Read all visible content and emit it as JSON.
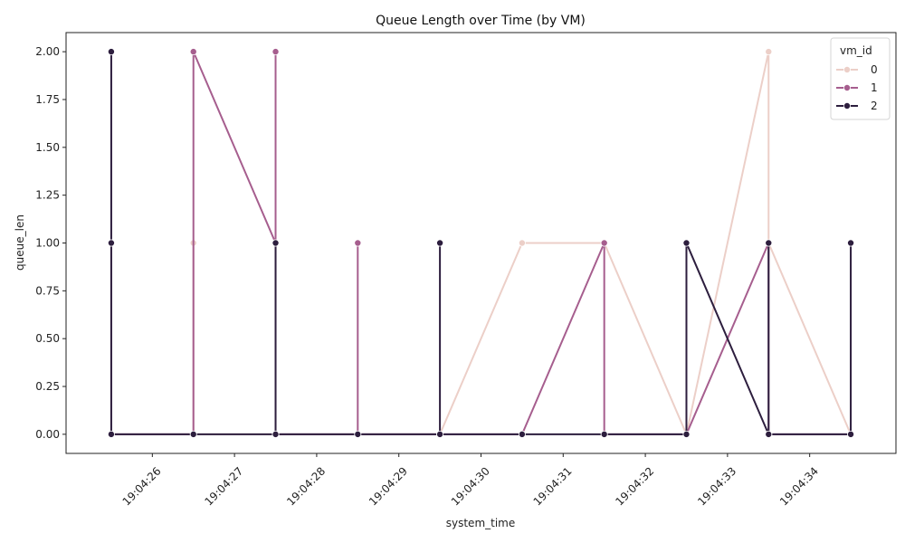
{
  "chart_data": {
    "type": "line",
    "title": "Queue Length over Time (by VM)",
    "xlabel": "system_time",
    "ylabel": "queue_len",
    "x_ticks": [
      "19:04:26",
      "19:04:27",
      "19:04:28",
      "19:04:29",
      "19:04:30",
      "19:04:31",
      "19:04:32",
      "19:04:33",
      "19:04:34"
    ],
    "xlim": [
      "19:04:24.950",
      "19:04:35.050"
    ],
    "ylim": [
      -0.1,
      2.1
    ],
    "y_ticks": [
      0.0,
      0.25,
      0.5,
      0.75,
      1.0,
      1.25,
      1.5,
      1.75,
      2.0
    ],
    "y_tick_labels": [
      "0.00",
      "0.25",
      "0.50",
      "0.75",
      "1.00",
      "1.25",
      "1.50",
      "1.75",
      "2.00"
    ],
    "grid": false,
    "legend": {
      "title": "vm_id",
      "position": "top-right"
    },
    "series": [
      {
        "name": "0",
        "color": "#eccfc8",
        "points": [
          {
            "x": "19:04:25.5",
            "y": 0
          },
          {
            "x": "19:04:25.5",
            "y": 1
          },
          {
            "x": "19:04:25.5",
            "y": 0
          },
          {
            "x": "19:04:26.5",
            "y": 0
          },
          {
            "x": "19:04:26.5",
            "y": 1
          },
          {
            "x": "19:04:26.5",
            "y": 0
          },
          {
            "x": "19:04:27.5",
            "y": 0
          },
          {
            "x": "19:04:28.5",
            "y": 0
          },
          {
            "x": "19:04:29.5",
            "y": 0
          },
          {
            "x": "19:04:30.5",
            "y": 1
          },
          {
            "x": "19:04:31.5",
            "y": 1
          },
          {
            "x": "19:04:32.5",
            "y": 0
          },
          {
            "x": "19:04:33.5",
            "y": 2
          },
          {
            "x": "19:04:33.5",
            "y": 1
          },
          {
            "x": "19:04:34.5",
            "y": 0
          }
        ]
      },
      {
        "name": "1",
        "color": "#a65e8e",
        "points": [
          {
            "x": "19:04:25.5",
            "y": 0
          },
          {
            "x": "19:04:26.5",
            "y": 0
          },
          {
            "x": "19:04:26.5",
            "y": 2
          },
          {
            "x": "19:04:27.5",
            "y": 1
          },
          {
            "x": "19:04:27.5",
            "y": 2
          },
          {
            "x": "19:04:27.5",
            "y": 0
          },
          {
            "x": "19:04:28.5",
            "y": 0
          },
          {
            "x": "19:04:28.5",
            "y": 1
          },
          {
            "x": "19:04:28.5",
            "y": 0
          },
          {
            "x": "19:04:29.5",
            "y": 0
          },
          {
            "x": "19:04:30.5",
            "y": 0
          },
          {
            "x": "19:04:31.5",
            "y": 1
          },
          {
            "x": "19:04:31.5",
            "y": 0
          },
          {
            "x": "19:04:32.5",
            "y": 0
          },
          {
            "x": "19:04:33.5",
            "y": 1
          },
          {
            "x": "19:04:33.5",
            "y": 0
          },
          {
            "x": "19:04:34.5",
            "y": 0
          }
        ]
      },
      {
        "name": "2",
        "color": "#2d1e3e",
        "points": [
          {
            "x": "19:04:25.5",
            "y": 2
          },
          {
            "x": "19:04:25.5",
            "y": 1
          },
          {
            "x": "19:04:25.5",
            "y": 0
          },
          {
            "x": "19:04:26.5",
            "y": 0
          },
          {
            "x": "19:04:27.5",
            "y": 0
          },
          {
            "x": "19:04:27.5",
            "y": 1
          },
          {
            "x": "19:04:27.5",
            "y": 0
          },
          {
            "x": "19:04:28.5",
            "y": 0
          },
          {
            "x": "19:04:29.5",
            "y": 0
          },
          {
            "x": "19:04:29.5",
            "y": 1
          },
          {
            "x": "19:04:29.5",
            "y": 0
          },
          {
            "x": "19:04:30.5",
            "y": 0
          },
          {
            "x": "19:04:31.5",
            "y": 0
          },
          {
            "x": "19:04:32.5",
            "y": 0
          },
          {
            "x": "19:04:32.5",
            "y": 1
          },
          {
            "x": "19:04:33.5",
            "y": 0
          },
          {
            "x": "19:04:33.5",
            "y": 1
          },
          {
            "x": "19:04:33.5",
            "y": 0
          },
          {
            "x": "19:04:34.5",
            "y": 0
          },
          {
            "x": "19:04:34.5",
            "y": 1
          }
        ]
      }
    ]
  }
}
